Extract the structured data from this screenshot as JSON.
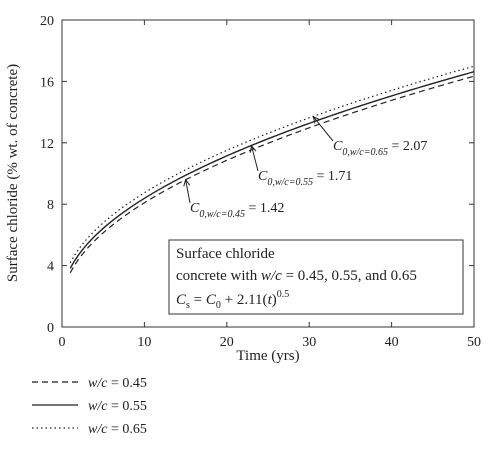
{
  "chart_data": {
    "type": "line",
    "xlabel": "Time (yrs)",
    "ylabel": "Surface chloride (% wt. of concrete)",
    "xlim": [
      0,
      50
    ],
    "ylim": [
      0,
      20
    ],
    "x_ticks": [
      "0",
      "10",
      "20",
      "30",
      "40",
      "50"
    ],
    "y_ticks": [
      "0",
      "4",
      "8",
      "12",
      "16",
      "20"
    ],
    "grid": false,
    "legend_placement": "bottom-left",
    "series": [
      {
        "name_prefix": "w/c",
        "name_value": "= 0.45",
        "style": "dashed",
        "C0": 1.42,
        "coef": 2.11,
        "exp": 0.5,
        "x": [
          1,
          5,
          10,
          15,
          20,
          25,
          30,
          35,
          40,
          45,
          50
        ],
        "values": [
          3.53,
          6.14,
          8.09,
          9.59,
          10.86,
          11.97,
          12.98,
          13.9,
          14.76,
          15.57,
          16.34
        ]
      },
      {
        "name_prefix": "w/c",
        "name_value": "= 0.55",
        "style": "solid",
        "C0": 1.71,
        "coef": 2.11,
        "exp": 0.5,
        "x": [
          1,
          5,
          10,
          15,
          20,
          25,
          30,
          35,
          40,
          45,
          50
        ],
        "values": [
          3.82,
          6.43,
          8.38,
          9.88,
          11.15,
          12.26,
          13.27,
          14.19,
          15.05,
          15.86,
          16.63
        ]
      },
      {
        "name_prefix": "w/c",
        "name_value": "= 0.65",
        "style": "dotted",
        "C0": 2.07,
        "coef": 2.11,
        "exp": 0.5,
        "x": [
          1,
          5,
          10,
          15,
          20,
          25,
          30,
          35,
          40,
          45,
          50
        ],
        "values": [
          4.18,
          6.79,
          8.74,
          10.24,
          11.51,
          12.62,
          13.63,
          14.55,
          15.41,
          16.22,
          16.99
        ]
      }
    ],
    "annotations": [
      {
        "main": "C",
        "sub": "0,w/c=0.45",
        "rest": " = 1.42",
        "arrow_to": [
          15,
          9.6
        ]
      },
      {
        "main": "C",
        "sub": "0,w/c=0.55",
        "rest": " = 1.71",
        "arrow_to": [
          23,
          11.8
        ]
      },
      {
        "main": "C",
        "sub": "0,w/c=0.65",
        "rest": " = 2.07",
        "arrow_to": [
          30.5,
          13.7
        ]
      }
    ],
    "info_box": {
      "line1": "Surface chloride",
      "line2_pre": "concrete with ",
      "line2_var": "w/c",
      "line2_post": " = 0.45, 0.55, and 0.65",
      "line3_cs": "C",
      "line3_cs_sub": "s",
      "line3_eq": " = ",
      "line3_c0": "C",
      "line3_c0_sub": "0",
      "line3_plus": " + 2.11(",
      "line3_t": "t",
      "line3_close": ")",
      "line3_exp": "0.5"
    }
  }
}
